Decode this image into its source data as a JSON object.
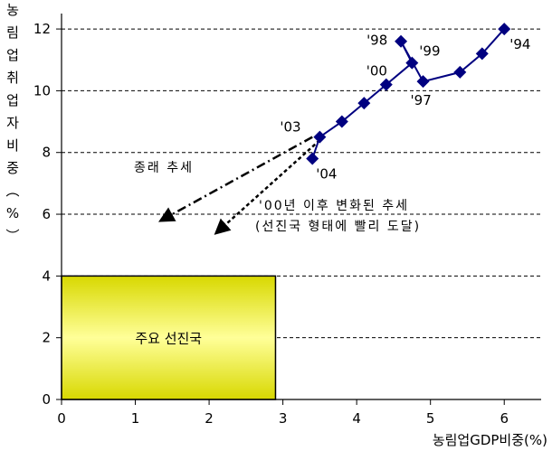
{
  "chart_data": {
    "type": "line",
    "xlabel": "농림업GDP비중(%)",
    "ylabel": "농림업취업자비중(%)",
    "xlim": [
      0,
      6.5
    ],
    "ylim": [
      0,
      12.5
    ],
    "x_ticks": [
      0,
      1,
      2,
      3,
      4,
      5,
      6
    ],
    "y_ticks": [
      0,
      2,
      4,
      6,
      8,
      10,
      12
    ],
    "grid": "horizontal dashed",
    "series": [
      {
        "type": "line",
        "color": "#000080",
        "points": [
          {
            "x": 6.0,
            "y": 12.0,
            "label": "'94"
          },
          {
            "x": 5.7,
            "y": 11.2,
            "label": ""
          },
          {
            "x": 5.4,
            "y": 10.6,
            "label": ""
          },
          {
            "x": 4.9,
            "y": 10.3,
            "label": "'97"
          },
          {
            "x": 4.6,
            "y": 11.6,
            "label": "'98"
          },
          {
            "x": 4.75,
            "y": 10.9,
            "label": "'99"
          },
          {
            "x": 4.4,
            "y": 10.2,
            "label": "'00"
          },
          {
            "x": 4.1,
            "y": 9.6,
            "label": ""
          },
          {
            "x": 3.8,
            "y": 9.0,
            "label": ""
          },
          {
            "x": 3.5,
            "y": 8.5,
            "label": "'03"
          },
          {
            "x": 3.4,
            "y": 7.8,
            "label": "'04"
          }
        ]
      }
    ],
    "trend_lines": [
      {
        "style": "dash-dot",
        "from": {
          "x": 3.4,
          "y": 8.5
        },
        "to": {
          "x": 1.35,
          "y": 5.8
        },
        "label": "종래 추세"
      },
      {
        "style": "dotted",
        "from": {
          "x": 3.5,
          "y": 8.4
        },
        "to": {
          "x": 2.1,
          "y": 5.4
        },
        "label_lines": [
          "'00년 이후 변화된 추세",
          "(선진국 형태에 빨리 도달)"
        ]
      }
    ],
    "region": {
      "label": "주요 선진국",
      "x": [
        0,
        2.9
      ],
      "y": [
        0,
        4
      ],
      "fill": "#d8d800",
      "fill_highlight": "#ffff99"
    }
  }
}
